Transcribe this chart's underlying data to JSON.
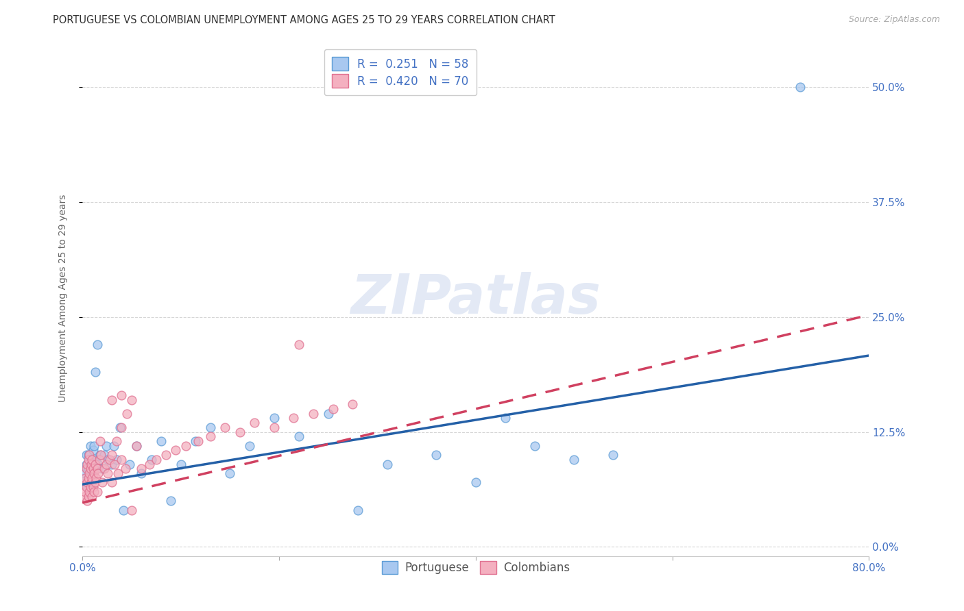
{
  "title": "PORTUGUESE VS COLOMBIAN UNEMPLOYMENT AMONG AGES 25 TO 29 YEARS CORRELATION CHART",
  "source": "Source: ZipAtlas.com",
  "ylabel": "Unemployment Among Ages 25 to 29 years",
  "xlim": [
    0.0,
    0.8
  ],
  "ylim": [
    -0.01,
    0.55
  ],
  "xticks": [
    0.0,
    0.2,
    0.4,
    0.6,
    0.8
  ],
  "yticks": [
    0.0,
    0.125,
    0.25,
    0.375,
    0.5
  ],
  "ytick_labels": [
    "0.0%",
    "12.5%",
    "25.0%",
    "37.5%",
    "50.0%"
  ],
  "watermark": "ZIPatlas",
  "portuguese_color_face": "#a8c8f0",
  "portuguese_color_edge": "#5b9bd5",
  "colombian_color_face": "#f4b0c0",
  "colombian_color_edge": "#e07090",
  "portuguese_line_color": "#2460a7",
  "colombian_line_color": "#d04060",
  "grid_color": "#cccccc",
  "background_color": "#ffffff",
  "title_fontsize": 10.5,
  "tick_fontsize": 11,
  "ylabel_fontsize": 10,
  "source_fontsize": 9,
  "legend_fontsize": 12,
  "tick_color_blue": "#4472c4",
  "portuguese_R": "0.251",
  "portuguese_N": "58",
  "colombian_R": "0.420",
  "colombian_N": "70",
  "portuguese_line_intercept": 0.068,
  "portuguese_line_slope": 0.175,
  "colombian_line_intercept": 0.048,
  "colombian_line_slope": 0.255,
  "portuguese_x": [
    0.002,
    0.003,
    0.004,
    0.004,
    0.005,
    0.005,
    0.006,
    0.006,
    0.006,
    0.007,
    0.007,
    0.008,
    0.008,
    0.009,
    0.009,
    0.01,
    0.01,
    0.011,
    0.011,
    0.012,
    0.012,
    0.013,
    0.014,
    0.015,
    0.016,
    0.018,
    0.02,
    0.022,
    0.024,
    0.026,
    0.03,
    0.032,
    0.035,
    0.038,
    0.042,
    0.048,
    0.055,
    0.06,
    0.07,
    0.08,
    0.09,
    0.1,
    0.115,
    0.13,
    0.15,
    0.17,
    0.195,
    0.22,
    0.25,
    0.28,
    0.31,
    0.36,
    0.4,
    0.43,
    0.46,
    0.5,
    0.54,
    0.73
  ],
  "portuguese_y": [
    0.075,
    0.08,
    0.09,
    0.1,
    0.065,
    0.085,
    0.07,
    0.085,
    0.1,
    0.075,
    0.095,
    0.08,
    0.11,
    0.07,
    0.09,
    0.075,
    0.095,
    0.08,
    0.105,
    0.085,
    0.11,
    0.19,
    0.095,
    0.22,
    0.09,
    0.1,
    0.085,
    0.1,
    0.11,
    0.095,
    0.09,
    0.11,
    0.095,
    0.13,
    0.04,
    0.09,
    0.11,
    0.08,
    0.095,
    0.115,
    0.05,
    0.09,
    0.115,
    0.13,
    0.08,
    0.11,
    0.14,
    0.12,
    0.145,
    0.04,
    0.09,
    0.1,
    0.07,
    0.14,
    0.11,
    0.095,
    0.1,
    0.5
  ],
  "colombian_x": [
    0.002,
    0.003,
    0.003,
    0.004,
    0.004,
    0.005,
    0.005,
    0.005,
    0.006,
    0.006,
    0.006,
    0.007,
    0.007,
    0.007,
    0.008,
    0.008,
    0.009,
    0.009,
    0.01,
    0.01,
    0.01,
    0.011,
    0.011,
    0.012,
    0.012,
    0.013,
    0.013,
    0.014,
    0.015,
    0.015,
    0.016,
    0.017,
    0.018,
    0.019,
    0.02,
    0.022,
    0.024,
    0.026,
    0.028,
    0.03,
    0.033,
    0.036,
    0.04,
    0.044,
    0.05,
    0.055,
    0.06,
    0.068,
    0.075,
    0.085,
    0.095,
    0.105,
    0.118,
    0.13,
    0.145,
    0.16,
    0.175,
    0.195,
    0.215,
    0.235,
    0.255,
    0.275,
    0.03,
    0.035,
    0.04,
    0.045,
    0.05,
    0.22,
    0.03,
    0.04
  ],
  "colombian_y": [
    0.055,
    0.06,
    0.075,
    0.065,
    0.085,
    0.05,
    0.07,
    0.09,
    0.055,
    0.075,
    0.095,
    0.06,
    0.08,
    0.1,
    0.065,
    0.085,
    0.07,
    0.09,
    0.055,
    0.075,
    0.095,
    0.065,
    0.085,
    0.06,
    0.08,
    0.07,
    0.09,
    0.075,
    0.06,
    0.085,
    0.08,
    0.095,
    0.115,
    0.1,
    0.07,
    0.085,
    0.09,
    0.08,
    0.095,
    0.07,
    0.09,
    0.08,
    0.095,
    0.085,
    0.04,
    0.11,
    0.085,
    0.09,
    0.095,
    0.1,
    0.105,
    0.11,
    0.115,
    0.12,
    0.13,
    0.125,
    0.135,
    0.13,
    0.14,
    0.145,
    0.15,
    0.155,
    0.1,
    0.115,
    0.13,
    0.145,
    0.16,
    0.22,
    0.16,
    0.165
  ]
}
